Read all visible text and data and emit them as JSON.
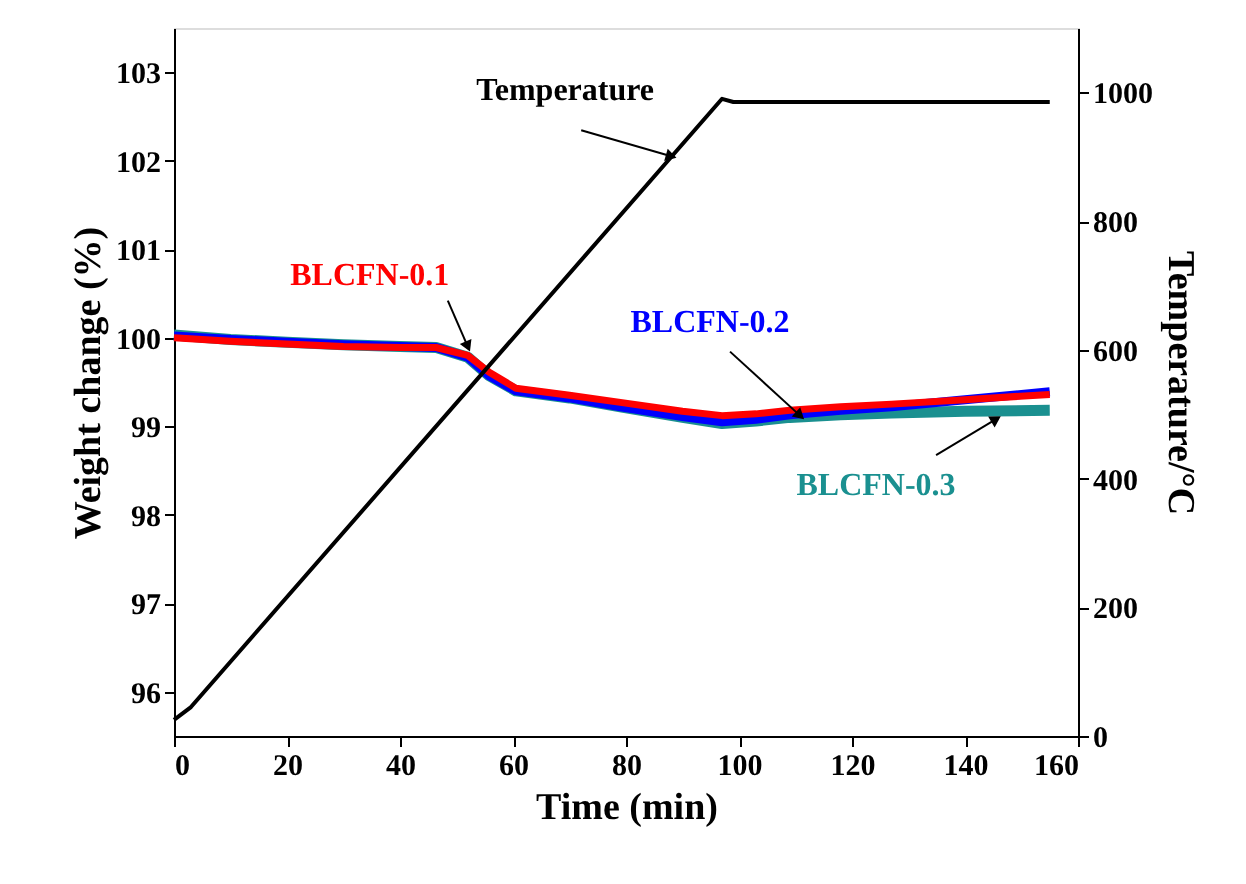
{
  "chart_data": {
    "type": "line",
    "xlabel": "Time (min)",
    "ylabel": "Weight change (%)",
    "y2label": "Temperature/°C",
    "xlim": [
      0,
      160
    ],
    "xticks": [
      0,
      20,
      40,
      60,
      80,
      100,
      120,
      140,
      160
    ],
    "ylim": [
      95.5,
      103.5
    ],
    "yticks": [
      96,
      97,
      98,
      99,
      100,
      101,
      102,
      103
    ],
    "y2lim": [
      0,
      1100
    ],
    "y2ticks": [
      0,
      200,
      400,
      600,
      800,
      {
        "value": 1000,
        "label": "1000"
      }
    ],
    "grid": false,
    "marker": "none",
    "line_style": "solid",
    "series": [
      {
        "color": "#000000",
        "axis": "y2",
        "x": [
          0,
          3,
          97,
          99,
          155
        ],
        "values": [
          25,
          45,
          990,
          985,
          985
        ]
      },
      {
        "color": "#ff0000",
        "x": [
          0,
          10,
          20,
          30,
          40,
          46.4,
          52,
          55.8,
          60.5,
          70,
          79,
          90,
          97,
          103,
          109,
          118,
          127,
          140,
          155
        ],
        "values": [
          100.0,
          99.96,
          99.93,
          99.9,
          99.89,
          99.89,
          99.8,
          99.61,
          99.43,
          99.35,
          99.27,
          99.17,
          99.12,
          99.14,
          99.18,
          99.22,
          99.25,
          99.3,
          99.36
        ]
      },
      {
        "color": "#0000ff",
        "x": [
          0,
          10,
          20,
          30,
          40,
          46.4,
          52,
          55.8,
          60.5,
          70,
          79,
          90,
          97,
          103,
          109,
          118,
          127,
          140,
          155
        ],
        "values": [
          100.02,
          99.98,
          99.95,
          99.92,
          99.9,
          99.89,
          99.78,
          99.57,
          99.4,
          99.32,
          99.22,
          99.11,
          99.05,
          99.08,
          99.13,
          99.18,
          99.22,
          99.3,
          99.39
        ]
      },
      {
        "color": "#1a9090",
        "x": [
          0,
          10,
          20,
          30,
          40,
          46.4,
          52,
          55.8,
          60.5,
          70,
          79,
          90,
          97,
          103,
          109,
          118,
          127,
          140,
          155
        ],
        "values": [
          100.03,
          99.98,
          99.95,
          99.92,
          99.9,
          99.89,
          99.78,
          99.57,
          99.4,
          99.32,
          99.22,
          99.1,
          99.03,
          99.06,
          99.1,
          99.13,
          99.15,
          99.17,
          99.18
        ]
      }
    ],
    "annotations": [
      {
        "text": "Temperature",
        "x": 88,
        "y": 102.05
      },
      {
        "text": "BLCFN-0.1",
        "x": 52,
        "y": 99.9
      },
      {
        "text": "BLCFN-0.2",
        "x": 110.8,
        "y": 99.12
      },
      {
        "text": "BLCFN-0.3",
        "x": 145.5,
        "y": 99.08
      }
    ]
  }
}
